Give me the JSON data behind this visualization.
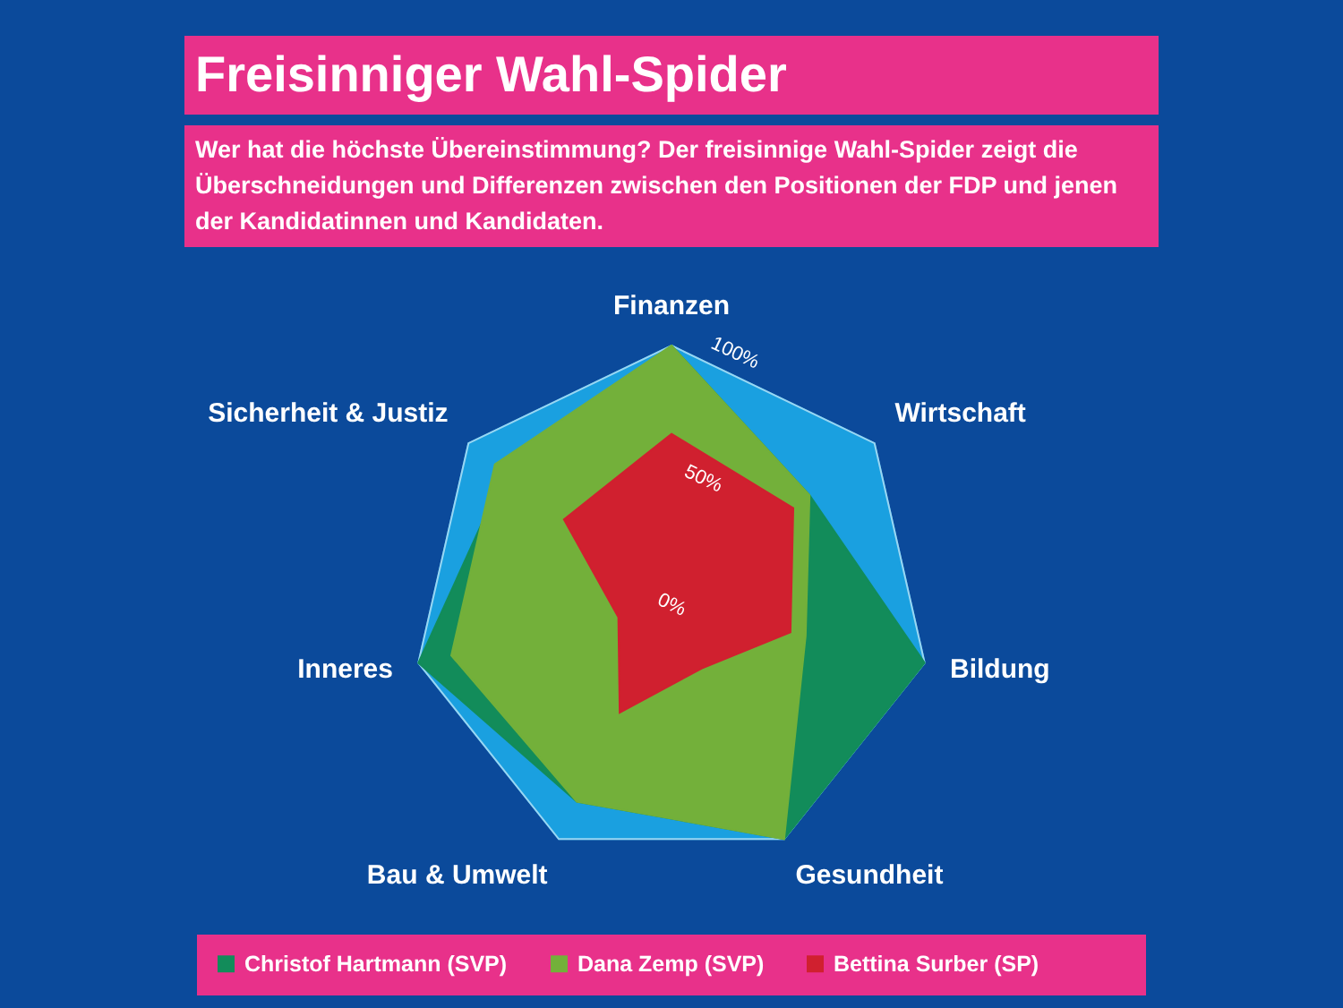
{
  "chart_data": {
    "type": "radar",
    "title": "Freisinniger Wahl-Spider",
    "subtitle": "Wer hat die höchste Übereinstimmung? Der freisinnige Wahl-Spider zeigt die Überschneidungen und Differenzen zwischen den Positionen der FDP und jenen der Kandidatinnen und Kandidaten.",
    "categories": [
      "Finanzen",
      "Wirtschaft",
      "Bildung",
      "Gesundheit",
      "Bau & Umwelt",
      "Inneres",
      "Sicherheit & Justiz"
    ],
    "ylim": [
      0,
      100
    ],
    "yticks": [
      {
        "value": 0,
        "label": "0%"
      },
      {
        "value": 50,
        "label": "50%"
      },
      {
        "value": 100,
        "label": "100%"
      }
    ],
    "grid": true,
    "legend": "bottom",
    "series": [
      {
        "name": "Christof Hartmann (SVP)",
        "color": "#128c5a",
        "values": [
          100,
          68,
          100,
          100,
          84,
          100,
          82
        ]
      },
      {
        "name": "Dana Zemp (SVP)",
        "color": "#73b03a",
        "values": [
          100,
          68,
          53,
          100,
          84,
          87,
          87
        ]
      },
      {
        "name": "Bettina Surber (SP)",
        "color": "#d0202f",
        "values": [
          66,
          60,
          47,
          27,
          46,
          21,
          53
        ]
      }
    ]
  }
}
